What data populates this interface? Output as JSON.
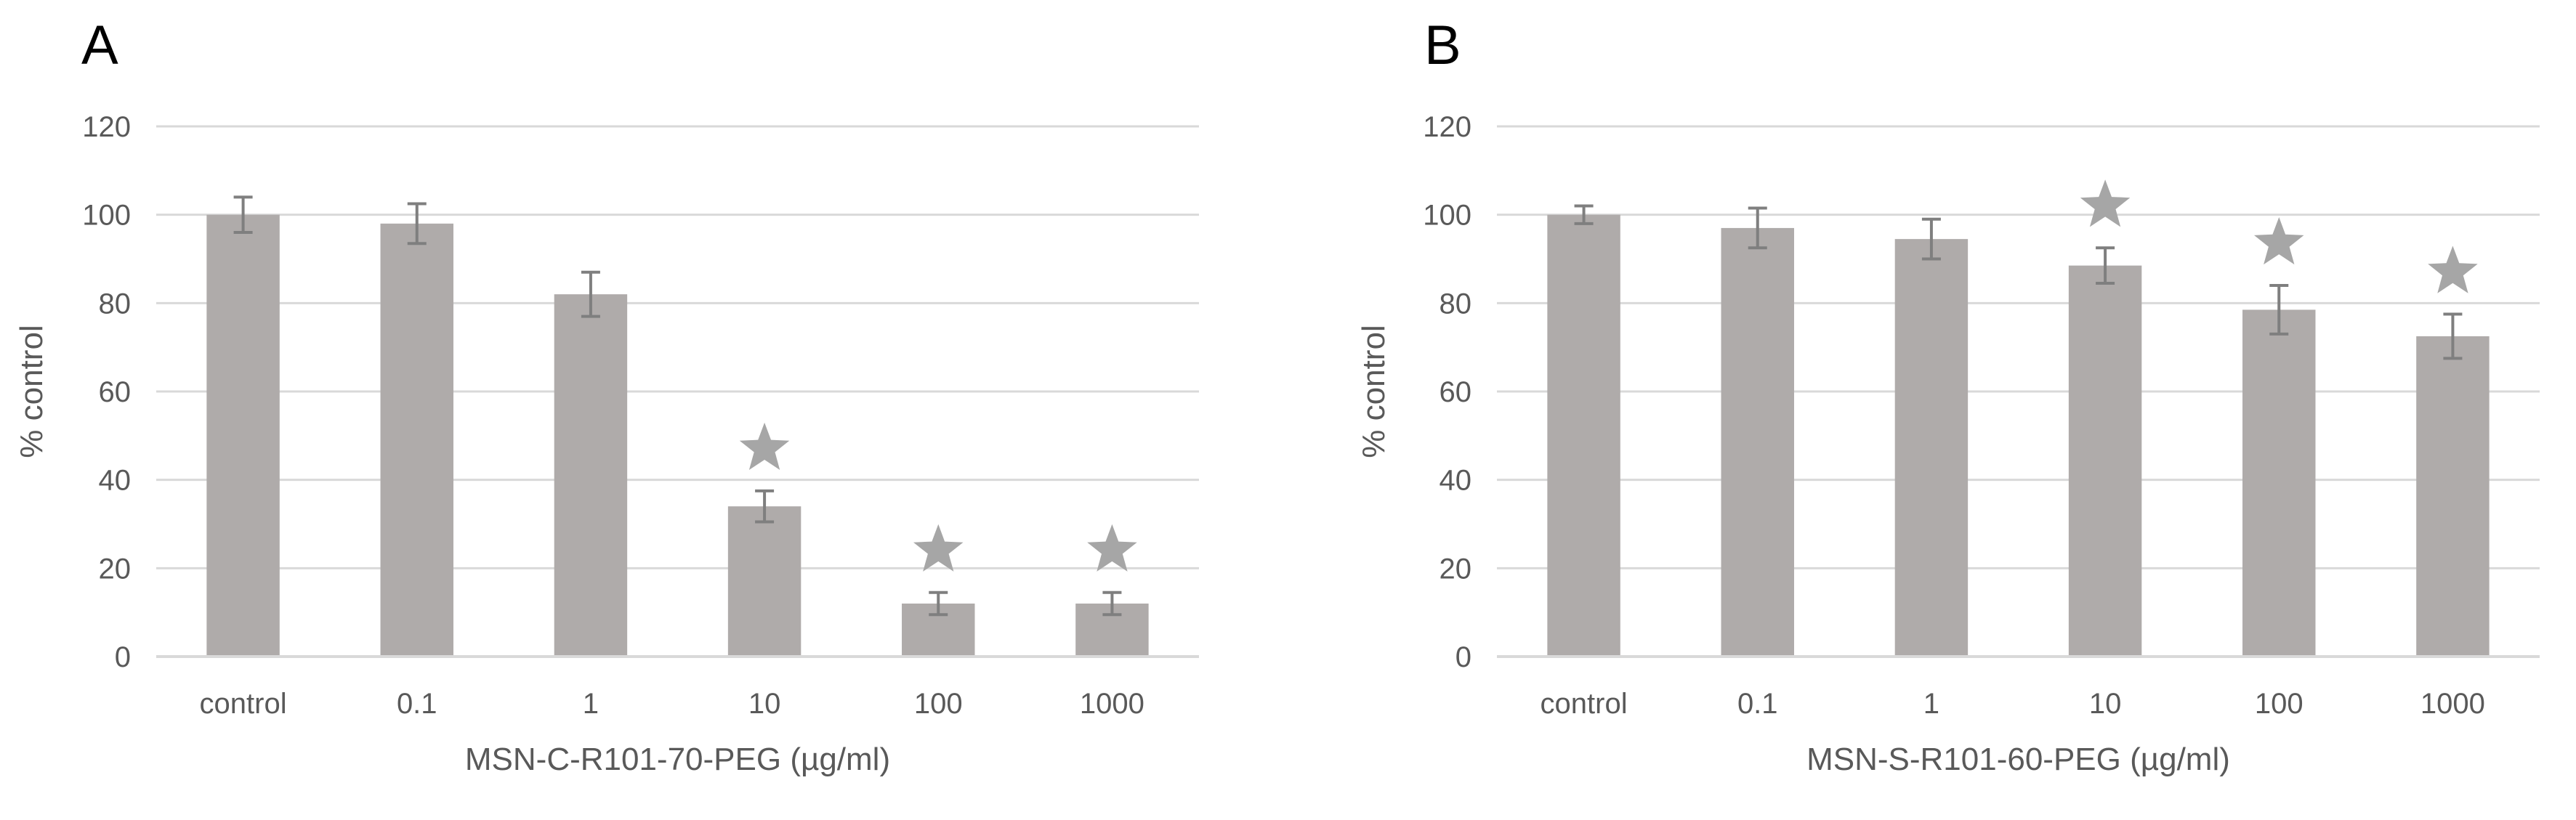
{
  "chart_data": [
    {
      "type": "bar",
      "panel_label": "A",
      "categories": [
        "control",
        "0.1",
        "1",
        "10",
        "100",
        "1000"
      ],
      "values": [
        100,
        98,
        82,
        34,
        12,
        12
      ],
      "errors": [
        4,
        4.5,
        5,
        3.5,
        2.5,
        2.5
      ],
      "significant": [
        false,
        false,
        false,
        true,
        true,
        true
      ],
      "xlabel": "MSN-C-R101-70-PEG (µg/ml)",
      "ylabel": "% control",
      "ylim": [
        0,
        120
      ],
      "yticks": [
        0,
        20,
        40,
        60,
        80,
        100,
        120
      ],
      "grid": true
    },
    {
      "type": "bar",
      "panel_label": "B",
      "categories": [
        "control",
        "0.1",
        "1",
        "10",
        "100",
        "1000"
      ],
      "values": [
        100,
        97,
        94.5,
        88.5,
        78.5,
        72.5
      ],
      "errors": [
        2,
        4.5,
        4.5,
        4,
        5.5,
        5
      ],
      "significant": [
        false,
        false,
        false,
        true,
        true,
        true
      ],
      "xlabel": "MSN-S-R101-60-PEG (µg/ml)",
      "ylabel": "% control",
      "ylim": [
        0,
        120
      ],
      "yticks": [
        0,
        20,
        40,
        60,
        80,
        100,
        120
      ],
      "grid": true
    }
  ],
  "colors": {
    "bar": "#afabaa",
    "error_bar": "#7f7f7f",
    "gridline": "#d9d9d9",
    "text": "#595959",
    "panel_label": "#000000",
    "star": "#a6a6a6"
  }
}
